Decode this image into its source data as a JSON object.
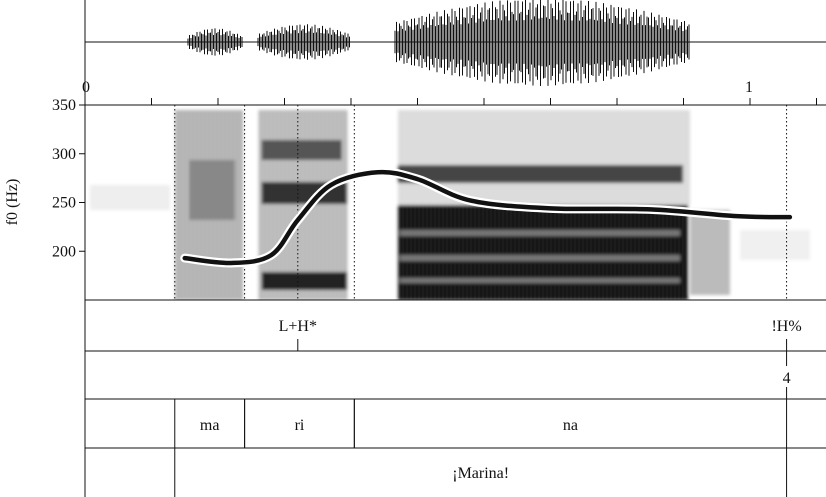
{
  "time_axis": {
    "start_label": "0",
    "end_label": "1"
  },
  "f0_axis": {
    "title": "f0 (Hz)",
    "ticks": [
      "350",
      "300",
      "250",
      "200"
    ],
    "range_hz": [
      150,
      350
    ]
  },
  "pitch_track": {
    "times_s": [
      0.15,
      0.22,
      0.28,
      0.32,
      0.37,
      0.44,
      0.5,
      0.58,
      0.7,
      0.85,
      0.98,
      1.06
    ],
    "hz": [
      193,
      188,
      196,
      232,
      268,
      281,
      274,
      252,
      244,
      243,
      236,
      235
    ]
  },
  "boundaries_s": [
    0.135,
    0.24,
    0.32,
    0.405,
    1.055
  ],
  "tiers": {
    "tones": [
      {
        "label": "L+H*",
        "time_s": 0.32
      },
      {
        "label": "!H%",
        "time_s": 1.055
      }
    ],
    "break_indices": [
      {
        "label": "4",
        "time_s": 1.055
      }
    ],
    "syllables": [
      {
        "label": "ma",
        "start_s": 0.135,
        "end_s": 0.24
      },
      {
        "label": "ri",
        "start_s": 0.24,
        "end_s": 0.405
      },
      {
        "label": "na",
        "start_s": 0.405,
        "end_s": 1.055
      }
    ],
    "words": [
      {
        "label": "¡Marina!",
        "start_s": 0.135,
        "end_s": 1.055
      }
    ]
  }
}
